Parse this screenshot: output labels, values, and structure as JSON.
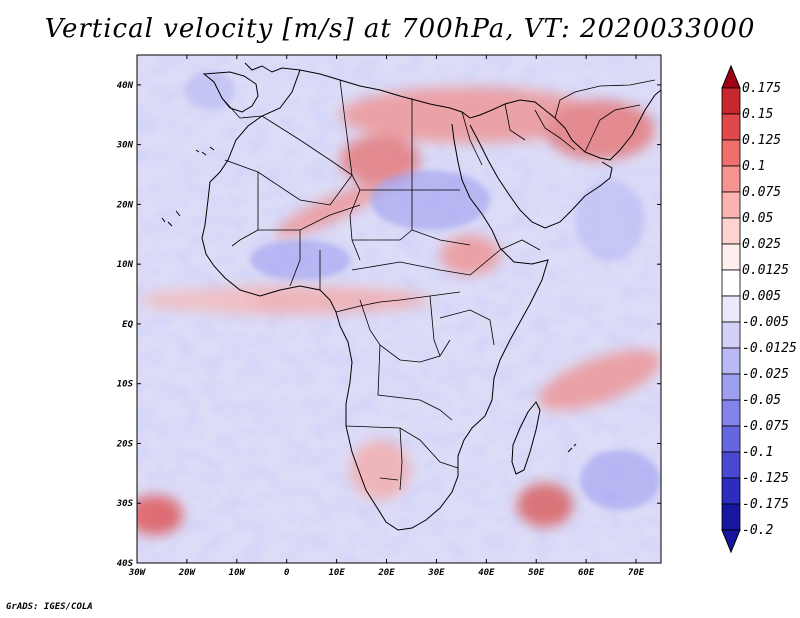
{
  "title": "Vertical velocity [m/s] at 700hPa, VT: 2020033000",
  "footer": "GrADS: IGES/COLA",
  "map": {
    "lon_range": [
      -30,
      75
    ],
    "lat_range": [
      -40,
      45
    ],
    "lon_ticks": [
      {
        "value": -30,
        "label": "30W"
      },
      {
        "value": -20,
        "label": "20W"
      },
      {
        "value": -10,
        "label": "10W"
      },
      {
        "value": 0,
        "label": "0"
      },
      {
        "value": 10,
        "label": "10E"
      },
      {
        "value": 20,
        "label": "20E"
      },
      {
        "value": 30,
        "label": "30E"
      },
      {
        "value": 40,
        "label": "40E"
      },
      {
        "value": 50,
        "label": "50E"
      },
      {
        "value": 60,
        "label": "60E"
      },
      {
        "value": 70,
        "label": "70E"
      }
    ],
    "lat_ticks": [
      {
        "value": 40,
        "label": "40N"
      },
      {
        "value": 30,
        "label": "30N"
      },
      {
        "value": 20,
        "label": "20N"
      },
      {
        "value": 10,
        "label": "10N"
      },
      {
        "value": 0,
        "label": "EQ"
      },
      {
        "value": -10,
        "label": "10S"
      },
      {
        "value": -20,
        "label": "20S"
      },
      {
        "value": -30,
        "label": "30S"
      },
      {
        "value": -40,
        "label": "40S"
      }
    ]
  },
  "colorbar": {
    "levels": [
      "0.175",
      "0.15",
      "0.125",
      "0.1",
      "0.075",
      "0.05",
      "0.025",
      "0.0125",
      "0.005",
      "-0.005",
      "-0.0125",
      "-0.025",
      "-0.05",
      "-0.075",
      "-0.1",
      "-0.125",
      "-0.175",
      "-0.2"
    ],
    "colors": [
      "#a00014",
      "#c8282d",
      "#e0494a",
      "#ef6f6a",
      "#f79391",
      "#fbb4b1",
      "#fdd2cf",
      "#feeeec",
      "#ffffff",
      "#eaeafc",
      "#d2d2f8",
      "#b9b9f4",
      "#9f9ff0",
      "#8383ea",
      "#6666e0",
      "#4848d2",
      "#2c2cbe",
      "#1616a0"
    ]
  }
}
